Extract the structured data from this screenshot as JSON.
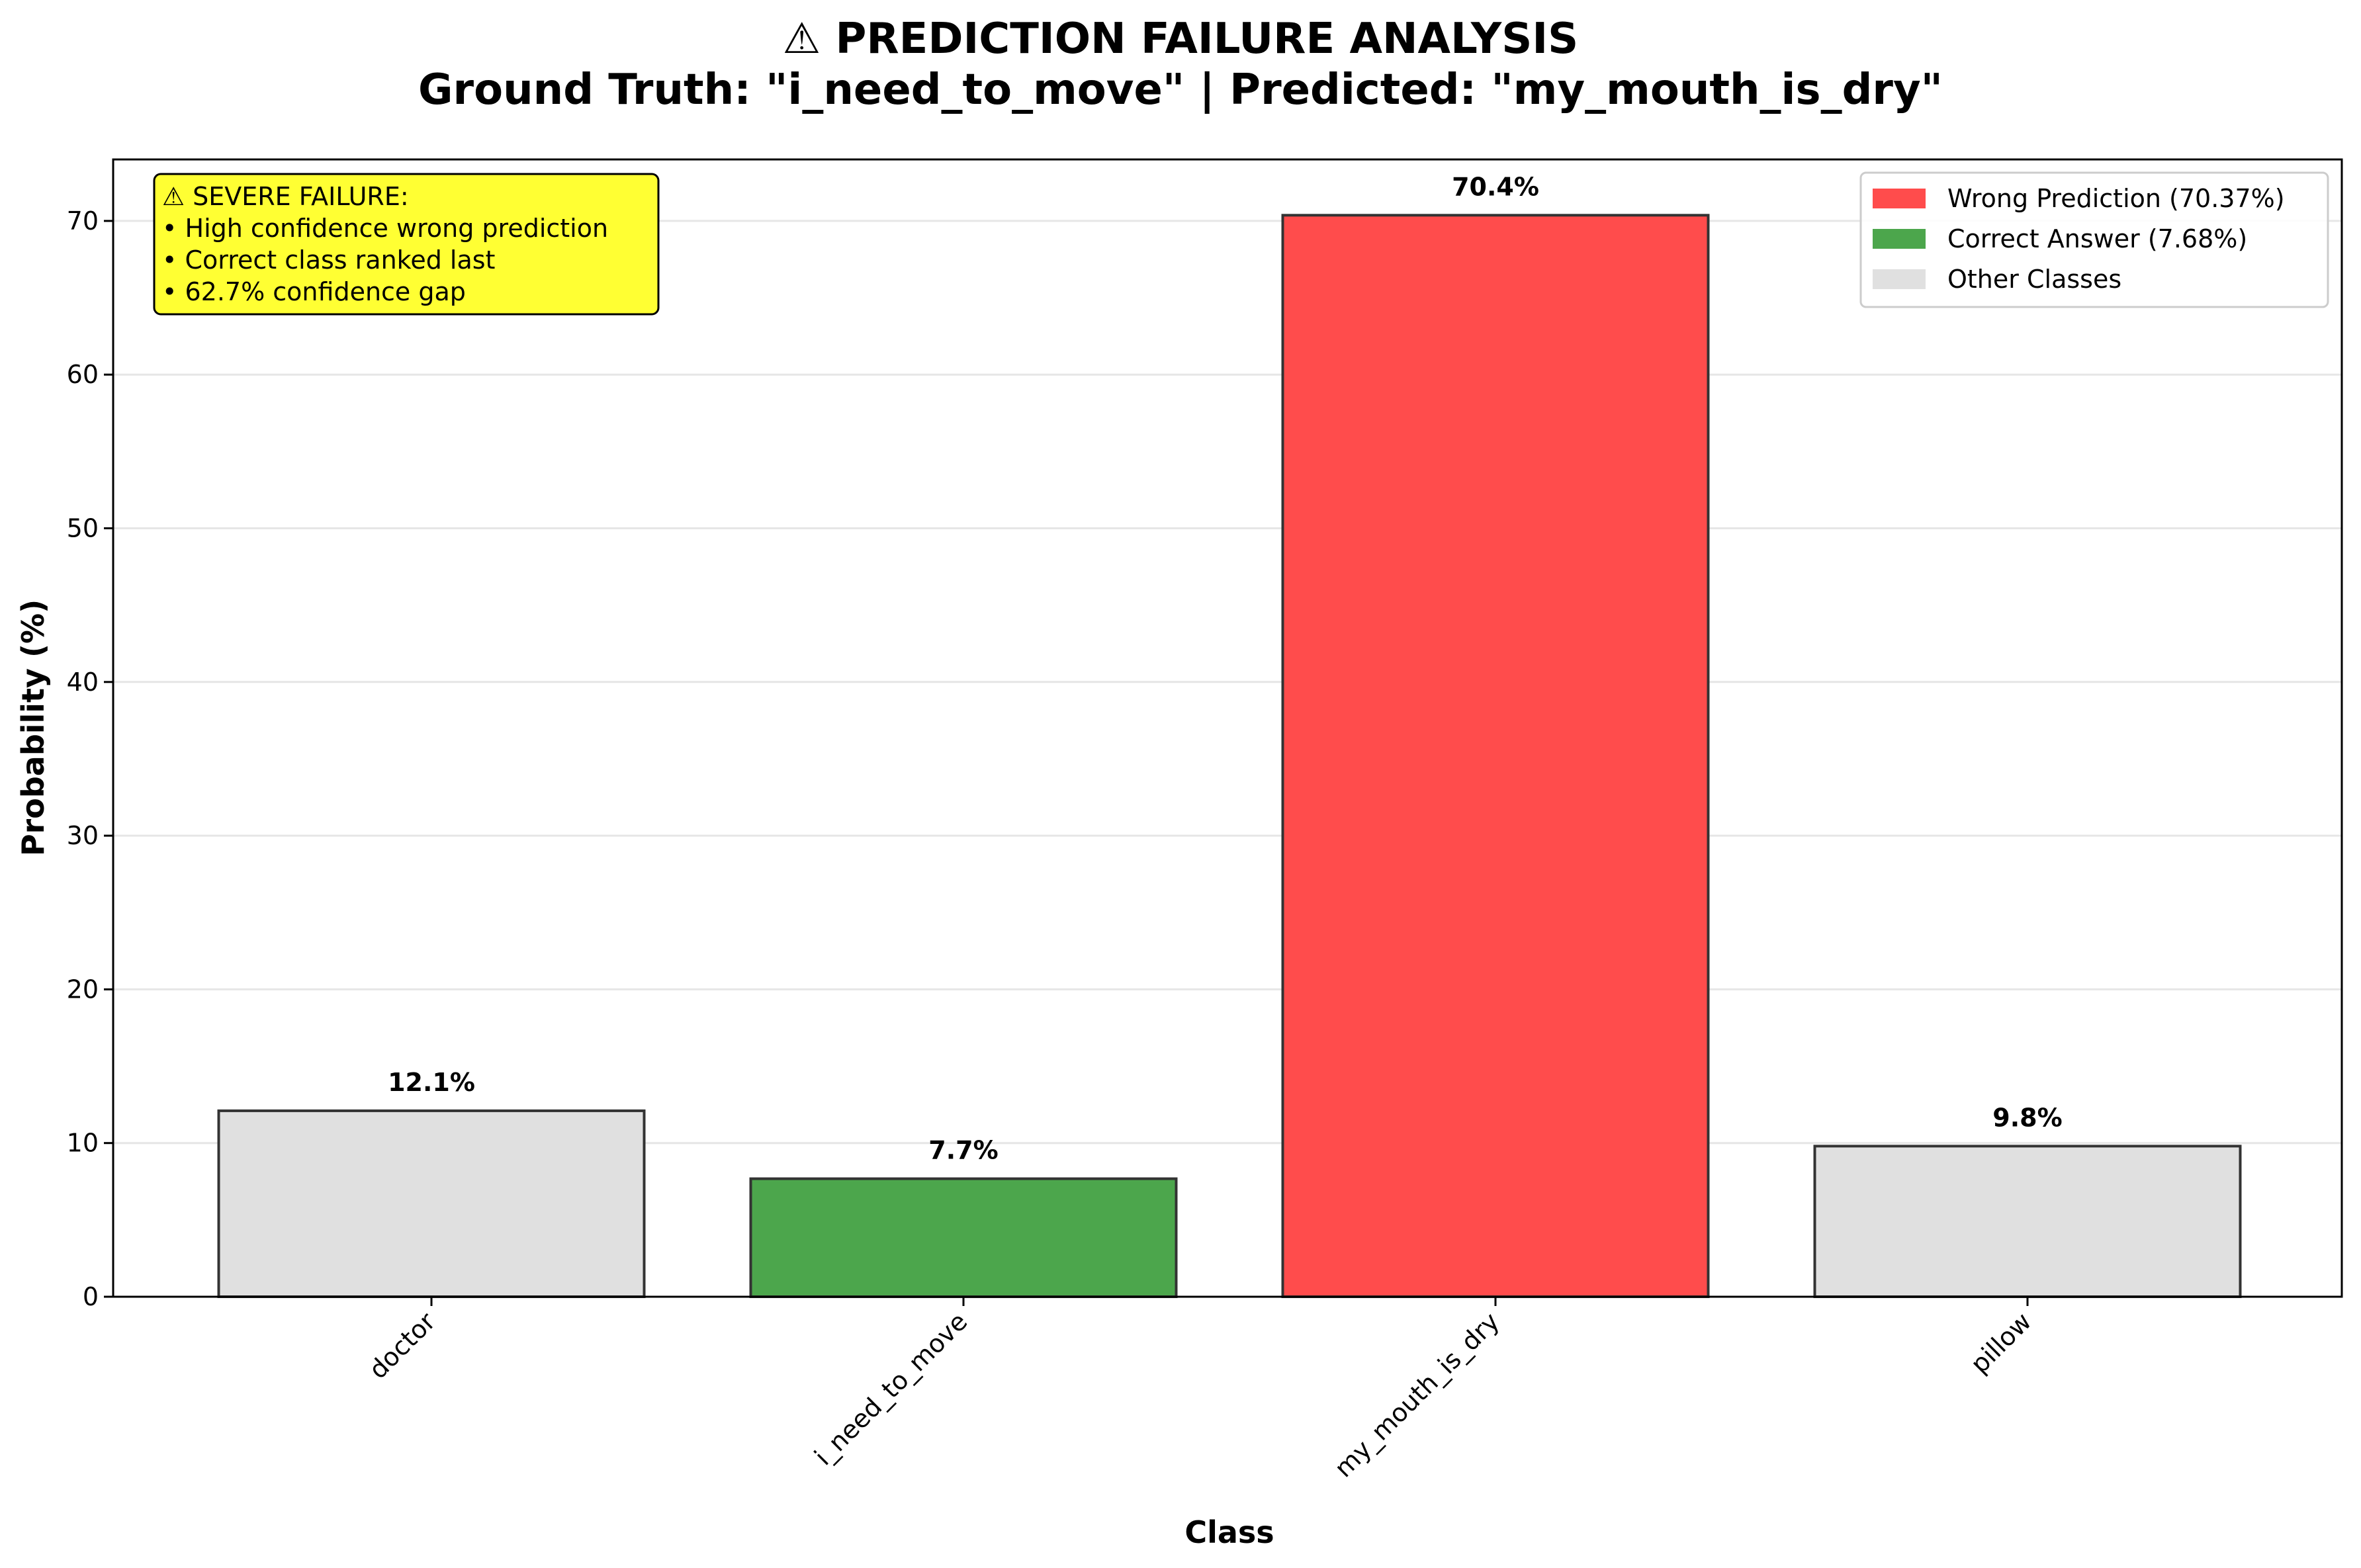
{
  "title_line1": "⚠ PREDICTION FAILURE ANALYSIS",
  "title_line2": "Ground Truth: \"i_need_to_move\" | Predicted: \"my_mouth_is_dry\"",
  "annotation": {
    "lines": [
      "⚠ SEVERE FAILURE:",
      "• High confidence wrong prediction",
      "• Correct class ranked last",
      "• 62.7% confidence gap"
    ],
    "background": "#ffff33"
  },
  "legend": [
    {
      "label": "Wrong Prediction (70.37%)",
      "color": "#ff4c4c"
    },
    {
      "label": "Correct Answer (7.68%)",
      "color": "#4ca64c"
    },
    {
      "label": "Other Classes",
      "color": "#e0e0e0"
    }
  ],
  "chart_data": {
    "type": "bar",
    "xlabel": "Class",
    "ylabel": "Probability (%)",
    "ylim": [
      0,
      74
    ],
    "yticks": [
      0,
      10,
      20,
      30,
      40,
      50,
      60,
      70
    ],
    "grid": "y",
    "legend_position": "top-right",
    "categories": [
      "doctor",
      "i_need_to_move",
      "my_mouth_is_dry",
      "pillow"
    ],
    "values": [
      12.1,
      7.68,
      70.37,
      9.8
    ],
    "value_labels": [
      "12.1%",
      "7.7%",
      "70.4%",
      "9.8%"
    ],
    "colors": [
      "#e0e0e0",
      "#4ca64c",
      "#ff4c4c",
      "#e0e0e0"
    ]
  }
}
